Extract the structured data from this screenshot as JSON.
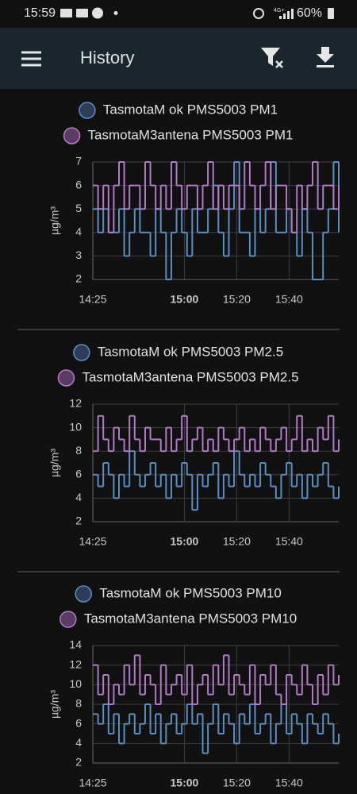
{
  "status_bar": {
    "time": "15:59",
    "network": "4G+",
    "battery": "60%"
  },
  "app_bar": {
    "title": "History"
  },
  "chart_data": [
    {
      "type": "line",
      "step": true,
      "ylabel": "µg/m³",
      "grid": true,
      "xlim": [
        "14:25",
        "15:59"
      ],
      "ylim": [
        2,
        7
      ],
      "yticks": [
        2,
        3,
        4,
        5,
        6,
        7
      ],
      "xticks": [
        "14:25",
        {
          "value": "15:00",
          "label": "15:00",
          "bold": true
        },
        "15:20",
        "15:40"
      ],
      "x": [
        "14:25",
        "14:27",
        "14:29",
        "14:31",
        "14:33",
        "14:35",
        "14:37",
        "14:39",
        "14:41",
        "14:43",
        "14:45",
        "14:47",
        "14:49",
        "14:51",
        "14:53",
        "14:55",
        "14:57",
        "14:59",
        "15:01",
        "15:03",
        "15:05",
        "15:07",
        "15:09",
        "15:11",
        "15:13",
        "15:15",
        "15:17",
        "15:19",
        "15:21",
        "15:23",
        "15:25",
        "15:27",
        "15:29",
        "15:31",
        "15:33",
        "15:35",
        "15:37",
        "15:39",
        "15:41",
        "15:43",
        "15:45",
        "15:47",
        "15:49",
        "15:51",
        "15:53",
        "15:55",
        "15:57",
        "15:59"
      ],
      "series": [
        {
          "name": "TasmotaM ok PMS5003 PM1",
          "color": "#5a8fc2",
          "values": [
            5,
            4,
            5,
            4,
            4,
            5,
            3,
            4,
            5,
            4,
            4,
            3,
            5,
            4,
            2,
            4,
            5,
            4,
            3,
            5,
            4,
            4,
            5,
            6,
            4,
            3,
            5,
            7,
            4,
            4,
            3,
            5,
            4,
            5,
            7,
            4,
            4,
            5,
            4,
            3,
            5,
            4,
            2,
            2,
            4,
            5,
            7,
            4
          ]
        },
        {
          "name": "TasmotaM3antena PMS5003 PM1",
          "color": "#b07cc6",
          "values": [
            6,
            5,
            6,
            4,
            6,
            7,
            5,
            6,
            6,
            5,
            7,
            6,
            5,
            6,
            5,
            7,
            6,
            5,
            6,
            6,
            5,
            6,
            7,
            5,
            6,
            5,
            6,
            6,
            5,
            7,
            6,
            5,
            6,
            7,
            5,
            6,
            6,
            5,
            4,
            6,
            5,
            6,
            7,
            5,
            6,
            6,
            5,
            6
          ]
        }
      ]
    },
    {
      "type": "line",
      "step": true,
      "ylabel": "µg/m³",
      "grid": true,
      "xlim": [
        "14:25",
        "15:59"
      ],
      "ylim": [
        2,
        12
      ],
      "yticks": [
        2,
        4,
        6,
        8,
        10,
        12
      ],
      "xticks": [
        "14:25",
        {
          "value": "15:00",
          "label": "15:00",
          "bold": true
        },
        "15:20",
        "15:40"
      ],
      "x": [
        "14:25",
        "14:27",
        "14:29",
        "14:31",
        "14:33",
        "14:35",
        "14:37",
        "14:39",
        "14:41",
        "14:43",
        "14:45",
        "14:47",
        "14:49",
        "14:51",
        "14:53",
        "14:55",
        "14:57",
        "14:59",
        "15:01",
        "15:03",
        "15:05",
        "15:07",
        "15:09",
        "15:11",
        "15:13",
        "15:15",
        "15:17",
        "15:19",
        "15:21",
        "15:23",
        "15:25",
        "15:27",
        "15:29",
        "15:31",
        "15:33",
        "15:35",
        "15:37",
        "15:39",
        "15:41",
        "15:43",
        "15:45",
        "15:47",
        "15:49",
        "15:51",
        "15:53",
        "15:55",
        "15:57",
        "15:59"
      ],
      "series": [
        {
          "name": "TasmotaM ok PMS5003 PM2.5",
          "color": "#5a8fc2",
          "values": [
            6,
            5,
            7,
            6,
            4,
            6,
            5,
            8,
            6,
            5,
            6,
            7,
            5,
            6,
            4,
            6,
            5,
            7,
            6,
            3,
            6,
            5,
            6,
            7,
            4,
            6,
            5,
            8,
            6,
            5,
            6,
            5,
            7,
            6,
            5,
            4,
            6,
            7,
            5,
            6,
            4,
            6,
            5,
            6,
            7,
            5,
            4,
            5
          ]
        },
        {
          "name": "TasmotaM3antena PMS5003 PM2.5",
          "color": "#b07cc6",
          "values": [
            8,
            11,
            9,
            8,
            10,
            9,
            8,
            11,
            9,
            8,
            10,
            9,
            9,
            8,
            10,
            8,
            9,
            11,
            8,
            9,
            10,
            8,
            9,
            8,
            10,
            9,
            8,
            9,
            10,
            8,
            9,
            8,
            10,
            9,
            8,
            9,
            10,
            8,
            9,
            11,
            8,
            9,
            8,
            10,
            9,
            11,
            8,
            9
          ]
        }
      ]
    },
    {
      "type": "line",
      "step": true,
      "ylabel": "µg/m³",
      "grid": true,
      "xlim": [
        "14:25",
        "15:59"
      ],
      "ylim": [
        2,
        14
      ],
      "yticks": [
        2,
        4,
        6,
        8,
        10,
        12,
        14
      ],
      "xticks": [
        "14:25",
        {
          "value": "15:00",
          "label": "15:00",
          "bold": true
        },
        "15:20",
        "15:40"
      ],
      "x": [
        "14:25",
        "14:27",
        "14:29",
        "14:31",
        "14:33",
        "14:35",
        "14:37",
        "14:39",
        "14:41",
        "14:43",
        "14:45",
        "14:47",
        "14:49",
        "14:51",
        "14:53",
        "14:55",
        "14:57",
        "14:59",
        "15:01",
        "15:03",
        "15:05",
        "15:07",
        "15:09",
        "15:11",
        "15:13",
        "15:15",
        "15:17",
        "15:19",
        "15:21",
        "15:23",
        "15:25",
        "15:27",
        "15:29",
        "15:31",
        "15:33",
        "15:35",
        "15:37",
        "15:39",
        "15:41",
        "15:43",
        "15:45",
        "15:47",
        "15:49",
        "15:51",
        "15:53",
        "15:55",
        "15:57",
        "15:59"
      ],
      "series": [
        {
          "name": "TasmotaM ok PMS5003 PM10",
          "color": "#5a8fc2",
          "values": [
            7,
            6,
            8,
            5,
            7,
            4,
            6,
            7,
            5,
            6,
            8,
            5,
            7,
            4,
            6,
            7,
            5,
            6,
            8,
            6,
            7,
            3,
            6,
            8,
            5,
            7,
            6,
            4,
            7,
            6,
            8,
            5,
            6,
            7,
            4,
            6,
            8,
            5,
            7,
            6,
            4,
            7,
            6,
            5,
            7,
            6,
            4,
            5
          ]
        },
        {
          "name": "TasmotaM3antena PMS5003 PM10",
          "color": "#b07cc6",
          "values": [
            12,
            9,
            11,
            8,
            10,
            9,
            12,
            10,
            13,
            9,
            11,
            10,
            8,
            12,
            9,
            10,
            11,
            9,
            12,
            8,
            10,
            11,
            9,
            12,
            10,
            13,
            9,
            11,
            10,
            9,
            12,
            8,
            11,
            10,
            12,
            9,
            8,
            11,
            10,
            9,
            12,
            10,
            8,
            11,
            9,
            12,
            10,
            11
          ]
        }
      ]
    }
  ]
}
